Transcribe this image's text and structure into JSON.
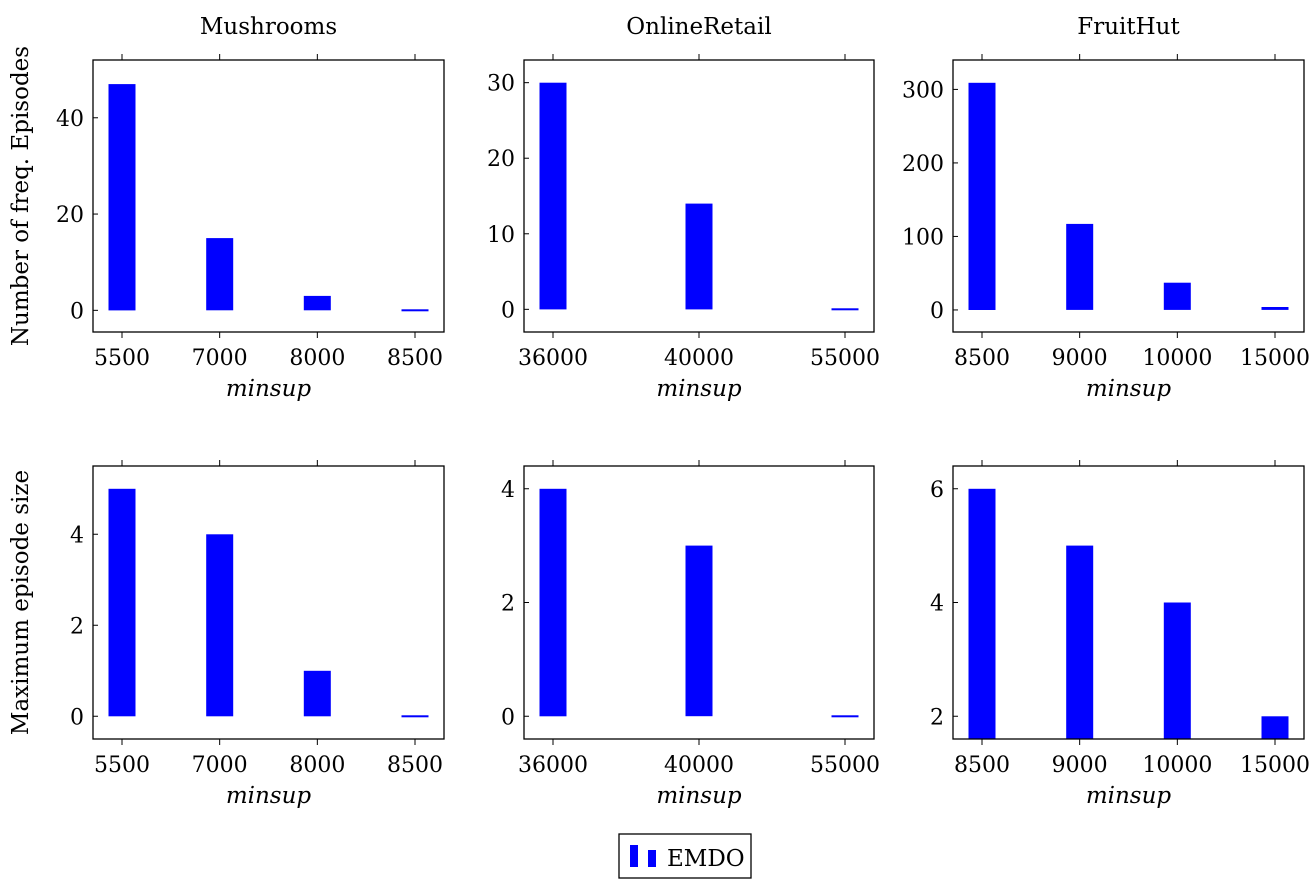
{
  "bar_color": "#0000ff",
  "legend": {
    "label": "EMDO"
  },
  "chart_data": [
    {
      "type": "bar",
      "row": 0,
      "col": 0,
      "title": "Mushrooms",
      "xlabel": "minsup",
      "ylabel": "Number of freq. Episodes",
      "categories": [
        "5500",
        "7000",
        "8000",
        "8500"
      ],
      "values": [
        47,
        15,
        3,
        0
      ],
      "ylim": [
        -4.5,
        52
      ],
      "yticks": [
        0,
        20,
        40
      ],
      "series": [
        {
          "name": "EMDO",
          "values": [
            47,
            15,
            3,
            0
          ]
        }
      ]
    },
    {
      "type": "bar",
      "row": 0,
      "col": 1,
      "title": "OnlineRetail",
      "xlabel": "minsup",
      "ylabel": "",
      "categories": [
        "36000",
        "40000",
        "55000"
      ],
      "values": [
        30,
        14,
        0
      ],
      "ylim": [
        -3,
        33
      ],
      "yticks": [
        0,
        10,
        20,
        30
      ],
      "series": [
        {
          "name": "EMDO",
          "values": [
            30,
            14,
            0
          ]
        }
      ]
    },
    {
      "type": "bar",
      "row": 0,
      "col": 2,
      "title": "FruitHut",
      "xlabel": "minsup",
      "ylabel": "",
      "categories": [
        "8500",
        "9000",
        "10000",
        "15000"
      ],
      "values": [
        309,
        117,
        37,
        4
      ],
      "ylim": [
        -30,
        340
      ],
      "yticks": [
        0,
        100,
        200,
        300
      ],
      "series": [
        {
          "name": "EMDO",
          "values": [
            309,
            117,
            37,
            4
          ]
        }
      ]
    },
    {
      "type": "bar",
      "row": 1,
      "col": 0,
      "title": "",
      "xlabel": "minsup",
      "ylabel": "Maximum episode size",
      "categories": [
        "5500",
        "7000",
        "8000",
        "8500"
      ],
      "values": [
        5,
        4,
        1,
        0
      ],
      "ylim": [
        -0.5,
        5.5
      ],
      "yticks": [
        0,
        2,
        4
      ],
      "series": [
        {
          "name": "EMDO",
          "values": [
            5,
            4,
            1,
            0
          ]
        }
      ]
    },
    {
      "type": "bar",
      "row": 1,
      "col": 1,
      "title": "",
      "xlabel": "minsup",
      "ylabel": "",
      "categories": [
        "36000",
        "40000",
        "55000"
      ],
      "values": [
        4,
        3,
        0
      ],
      "ylim": [
        -0.4,
        4.4
      ],
      "yticks": [
        0,
        2,
        4
      ],
      "series": [
        {
          "name": "EMDO",
          "values": [
            4,
            3,
            0
          ]
        }
      ]
    },
    {
      "type": "bar",
      "row": 1,
      "col": 2,
      "title": "",
      "xlabel": "minsup",
      "ylabel": "",
      "categories": [
        "8500",
        "9000",
        "10000",
        "15000"
      ],
      "values": [
        6,
        5,
        4,
        2
      ],
      "ylim": [
        1.6,
        6.4
      ],
      "yticks": [
        2,
        4,
        6
      ],
      "series": [
        {
          "name": "EMDO",
          "values": [
            6,
            5,
            4,
            2
          ]
        }
      ]
    }
  ]
}
